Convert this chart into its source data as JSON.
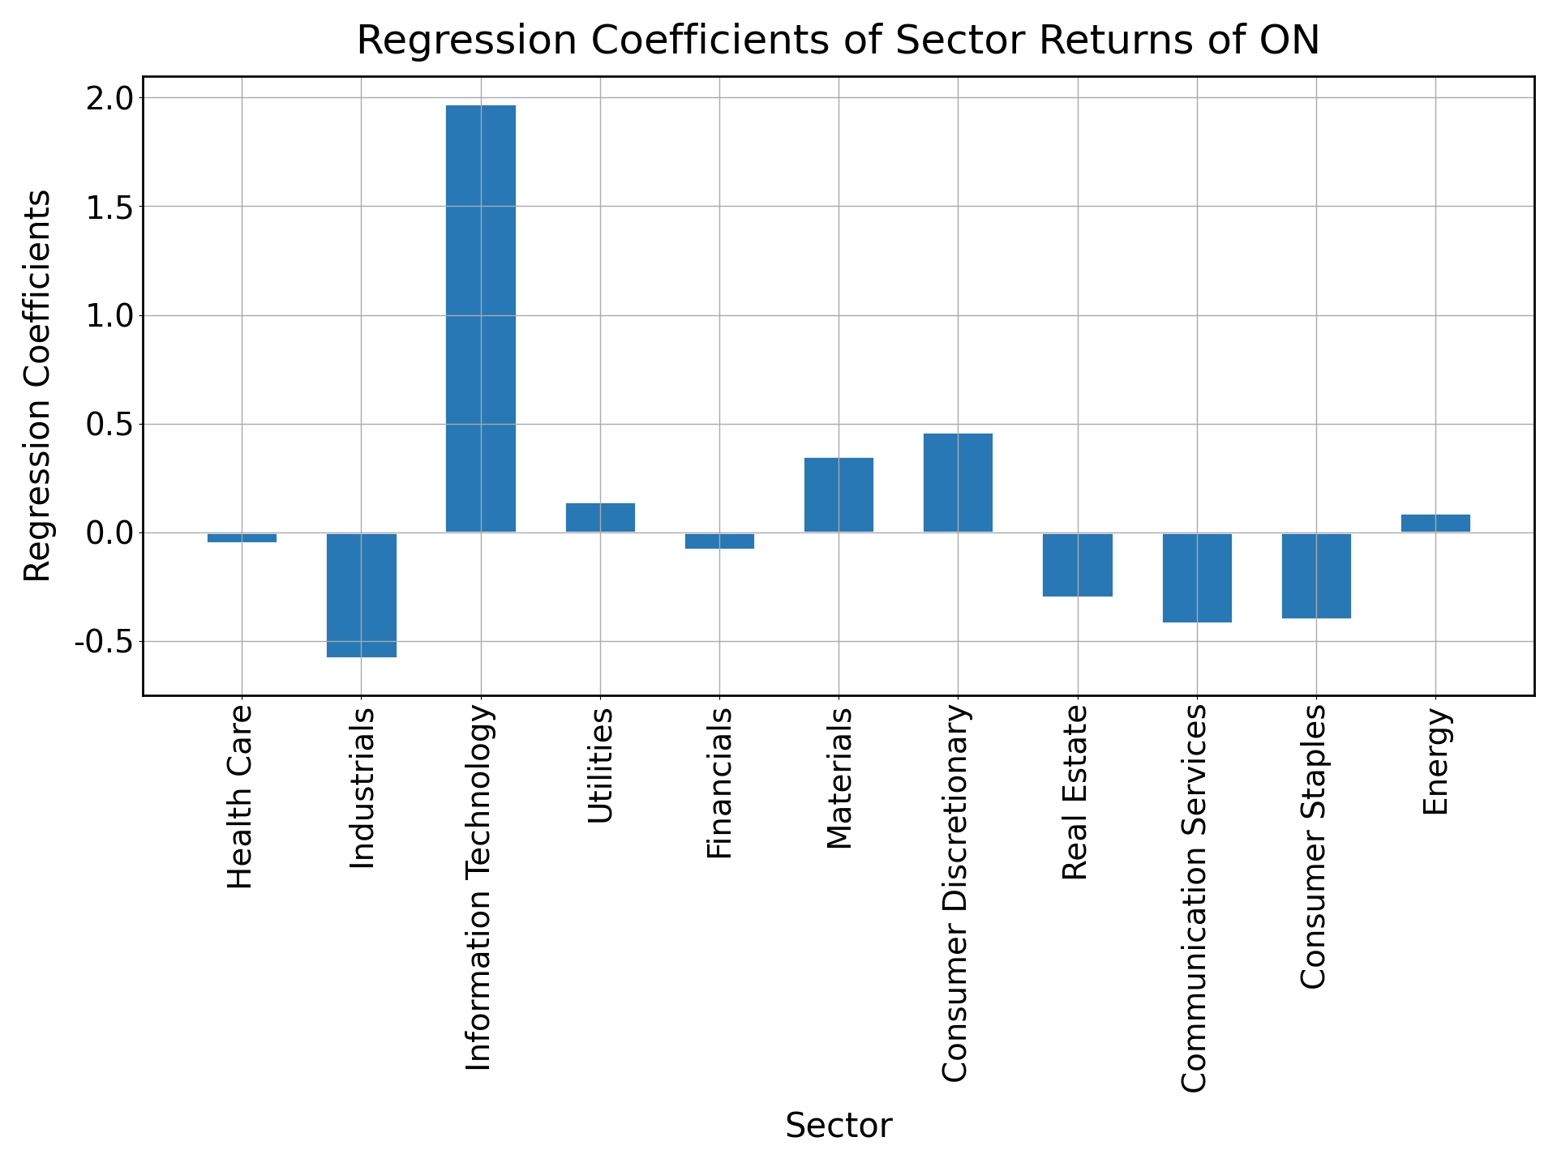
{
  "title": "Regression Coefficients of Sector Returns of ON",
  "xlabel": "Sector",
  "ylabel": "Regression Coefficients",
  "categories": [
    "Health Care",
    "Industrials",
    "Information Technology",
    "Utilities",
    "Financials",
    "Materials",
    "Consumer Discretionary",
    "Real Estate",
    "Communication Services",
    "Consumer Staples",
    "Energy"
  ],
  "values": [
    -0.05,
    -0.58,
    1.97,
    0.14,
    -0.08,
    0.35,
    0.46,
    -0.3,
    -0.42,
    -0.4,
    0.09
  ],
  "bar_color": "#2878b5",
  "ylim": [
    -0.75,
    2.1
  ],
  "yticks": [
    -0.5,
    0.0,
    0.5,
    1.0,
    1.5,
    2.0
  ],
  "title_fontsize": 36,
  "label_fontsize": 30,
  "tick_fontsize": 28,
  "figsize": [
    19.2,
    14.4
  ],
  "dpi": 100,
  "background_color": "#ffffff",
  "grid_color": "#aaaaaa",
  "bar_edgecolor": "#ffffff",
  "bar_linewidth": 2.0
}
